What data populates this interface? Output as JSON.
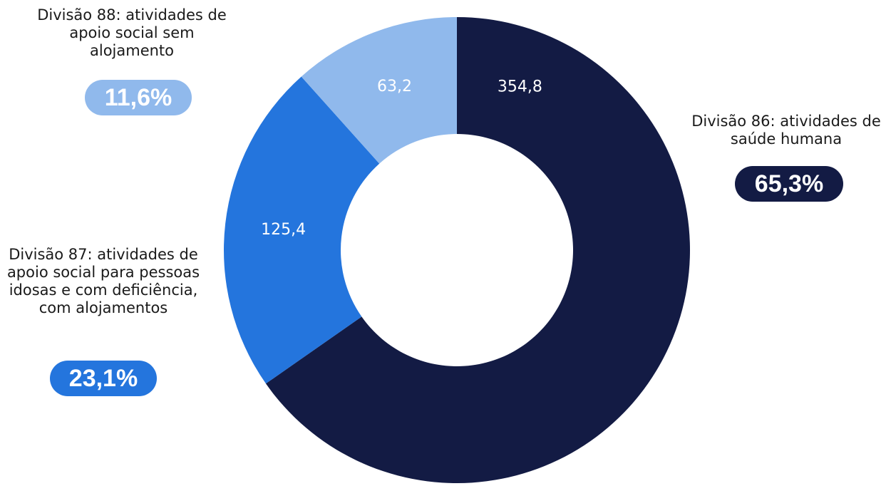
{
  "chart_data": {
    "type": "pie",
    "donut": true,
    "categories": [
      "Divisão 86: atividades de saúde humana",
      "Divisão 87: atividades de apoio social para pessoas idosas e com deficiência, com alojamentos",
      "Divisão 88: atividades de apoio social sem alojamento"
    ],
    "values": [
      354.8,
      125.4,
      63.2
    ],
    "value_labels": [
      "354,8",
      "125,4",
      "63,2"
    ],
    "percentages": [
      "65,3%",
      "23,1%",
      "11,6%"
    ],
    "colors": [
      "#131b44",
      "#2475dd",
      "#90b9ec"
    ],
    "title": "",
    "legend": "none"
  },
  "labels": {
    "div86": "Divisão 86: atividades de saúde humana",
    "div87": "Divisão 87: atividades de apoio social para pessoas idosas e com deficiência, com alojamentos",
    "div88": "Divisão 88: atividades de apoio social sem alojamento"
  },
  "badges": {
    "div86": "65,3%",
    "div87": "23,1%",
    "div88": "11,6%"
  }
}
